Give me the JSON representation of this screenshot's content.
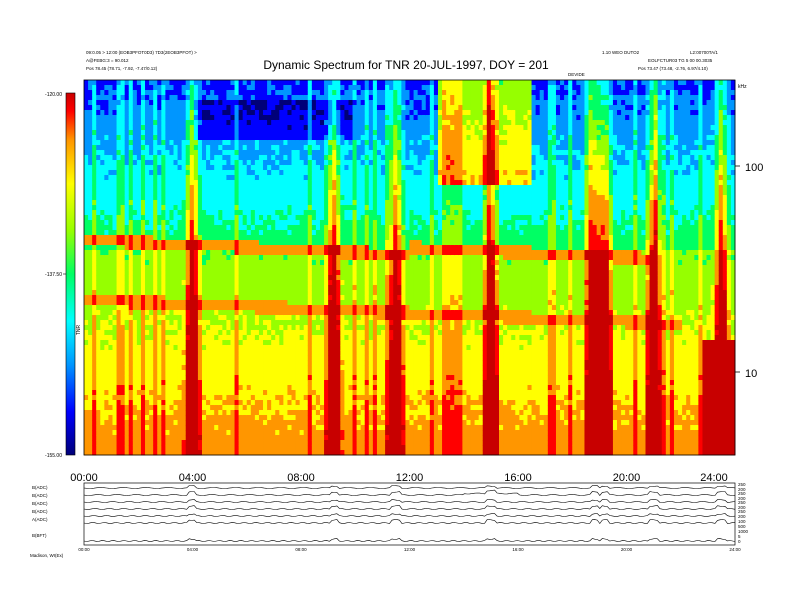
{
  "header": {
    "title": "Dynamic Spectrum for TNR 20-JUL-1997, DOY = 201",
    "meta_left_1": "09:0.05 > 12:00 (EOB3PFOT0D3) 7D3(2EOB3PFOT) >",
    "meta_left_2": "A@FEBG:3 = 90.012",
    "meta_left_3": "Pos   78.45 (78.71, -7.92, -7.47/0.12)",
    "meta_right_1": "1.10 WEO DUTO2",
    "meta_right_2": "L2:00700TA/1",
    "meta_right_3": "EOLFCTUR03  TG 5 00 00.3035",
    "meta_right_4": "Pos   73.47 (73.48, -2.76, 6.97/4.10)",
    "center_small": "DEVIDE"
  },
  "colorbar": {
    "max_label": "-120.00",
    "mid_label": "-137.50",
    "min_label": "-155.00",
    "unit_label": "TNR",
    "colors": [
      "#000078",
      "#0000ff",
      "#0096ff",
      "#00ffff",
      "#00ff64",
      "#96ff00",
      "#ffff00",
      "#ff9600",
      "#ff0000",
      "#c80000"
    ]
  },
  "spectrum": {
    "right_unit": "kHz",
    "x_tick_labels": [
      "00:00",
      "04:00",
      "08:00",
      "12:00",
      "16:00",
      "20:00",
      "24:00"
    ],
    "y_tick_labels": [
      "100",
      "10"
    ]
  },
  "line_panel": {
    "row_labels": [
      "B(ADC)",
      "B(ADC)",
      "B(ADC)",
      "B(ADC)",
      "A(ADC)",
      "",
      "B(BFT)"
    ],
    "right_labels": [
      "250",
      "200",
      "250",
      "200",
      "250",
      "200",
      "250",
      "200",
      "100",
      "500",
      "1000",
      "5",
      "0"
    ],
    "x_tick_labels": [
      "00:00",
      "04:00",
      "08:00",
      "12:00",
      "16:00",
      "20:00",
      "24:00"
    ],
    "footer_left": "Madison, WI(Ex)"
  },
  "chart_data": [
    {
      "type": "heatmap",
      "title": "Dynamic Spectrum for TNR 20-JUL-1997, DOY = 201",
      "xlabel": "",
      "ylabel": "kHz",
      "x_range_hours": [
        0,
        24
      ],
      "y_ticks": [
        10,
        100
      ],
      "y_scale": "log",
      "colorbar_label": "TNR",
      "colorbar_range": [
        -155.0,
        -120.0
      ],
      "x_tick_labels": [
        "00:00",
        "04:00",
        "08:00",
        "12:00",
        "16:00",
        "20:00",
        "24:00"
      ],
      "grid": false,
      "features": {
        "low_frequency_band_hours": [
          1,
          2,
          3,
          4,
          5,
          6,
          7,
          8,
          9,
          10,
          11,
          12
        ],
        "bright_bursts_hours": [
          4.0,
          9.2,
          11.5,
          15.0,
          18.8,
          19.2,
          21.0,
          23.5
        ]
      }
    },
    {
      "type": "line",
      "title": "",
      "x_range_hours": [
        0,
        24
      ],
      "series": [
        {
          "name": "B(ADC)"
        },
        {
          "name": "B(ADC)"
        },
        {
          "name": "B(ADC)"
        },
        {
          "name": "B(ADC)"
        },
        {
          "name": "A(ADC)"
        },
        {
          "name": "B(BFT)"
        }
      ]
    }
  ]
}
